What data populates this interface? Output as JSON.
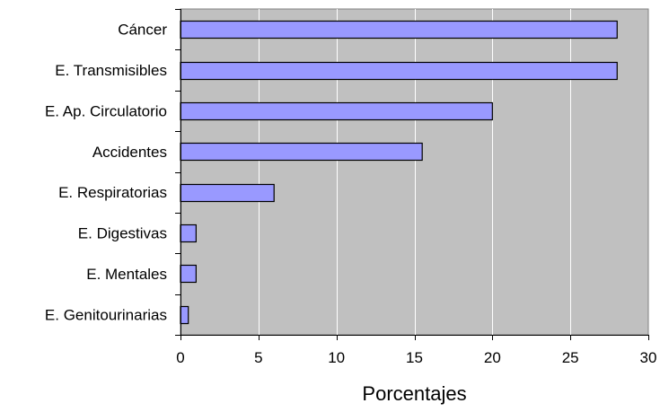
{
  "chart_data": {
    "type": "bar",
    "orientation": "horizontal",
    "categories": [
      "Cáncer",
      "E. Transmisibles",
      "E. Ap. Circulatorio",
      "Accidentes",
      "E. Respiratorias",
      "E. Digestivas",
      "E. Mentales",
      "E. Genitourinarias"
    ],
    "values": [
      28,
      28,
      20,
      15.5,
      6,
      1,
      1,
      0.5
    ],
    "title": "",
    "xlabel": "Porcentajes",
    "ylabel": "",
    "xlim": [
      0,
      30
    ],
    "x_ticks": [
      "0",
      "5",
      "10",
      "15",
      "20",
      "25",
      "30"
    ],
    "grid": "vertical",
    "legend": "none",
    "colors": {
      "plot_background": "#c0c0c0",
      "bar_fill": "#9999ff",
      "bar_stroke": "#000000",
      "gridline": "#ffffff",
      "axis": "#000000"
    }
  }
}
